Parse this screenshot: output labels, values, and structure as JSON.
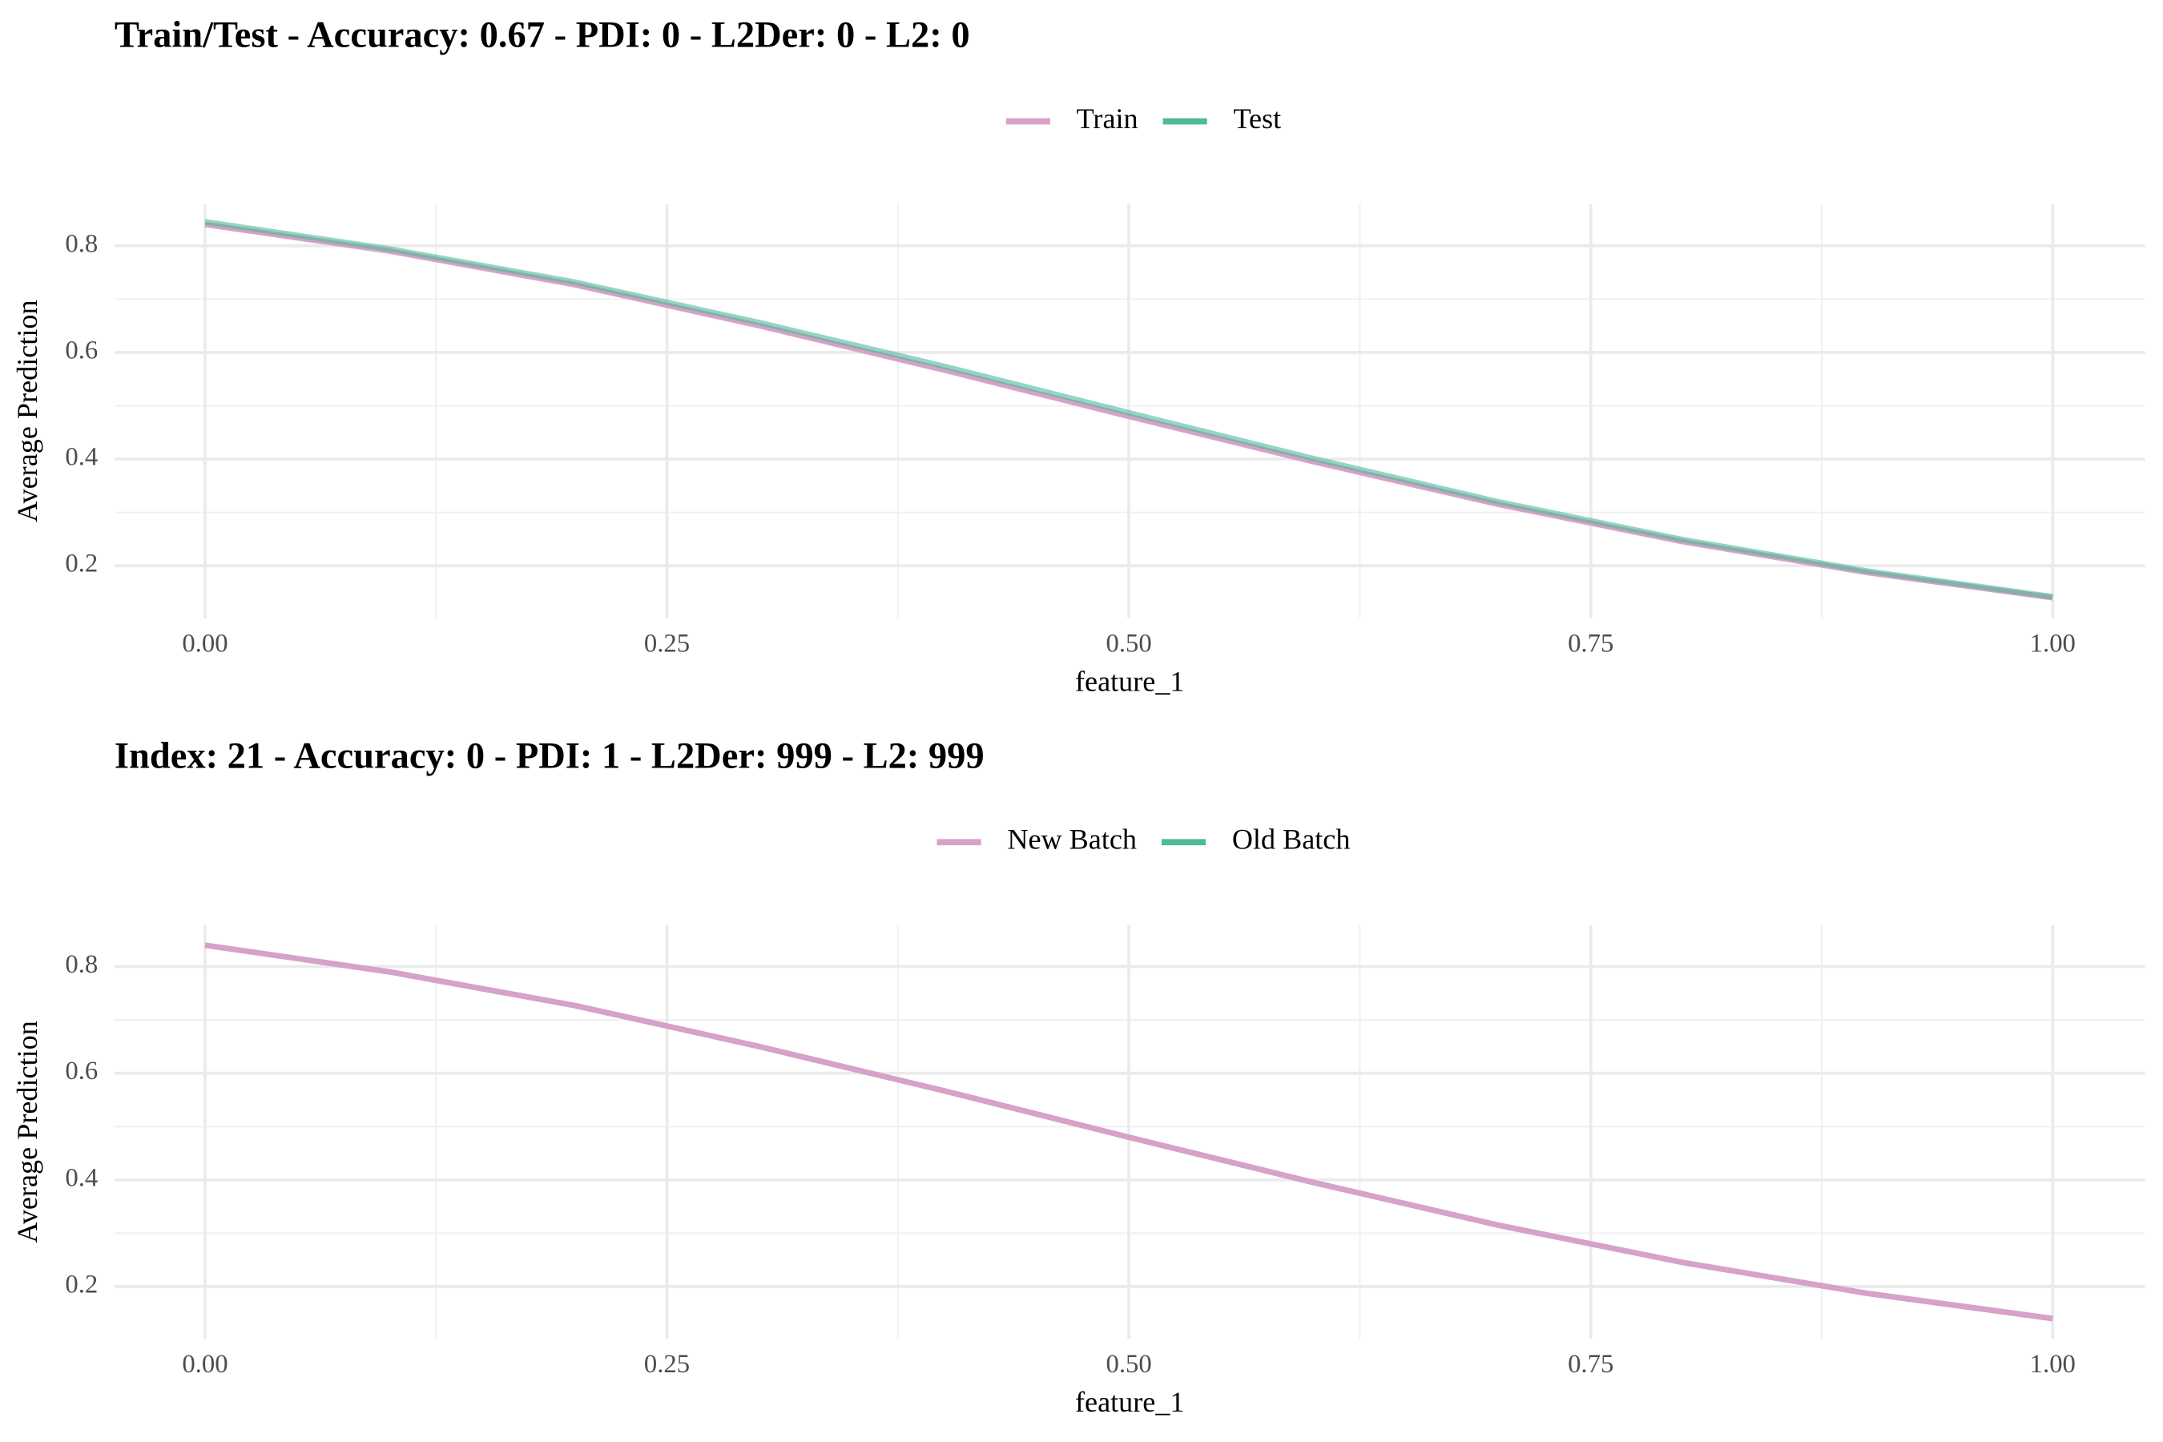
{
  "chart_data": [
    {
      "type": "line",
      "title": "Train/Test - Accuracy: 0.67 - PDI: 0 - L2Der: 0 - L2: 0",
      "x_label": "feature_1",
      "y_label": "Average Prediction",
      "x": [
        0,
        0.1,
        0.2,
        0.3,
        0.4,
        0.5,
        0.6,
        0.7,
        0.8,
        0.9,
        1.0
      ],
      "series": [
        {
          "name": "Train",
          "color": "#d7a1c9",
          "values": [
            0.84,
            0.79,
            0.727,
            0.65,
            0.567,
            0.48,
            0.395,
            0.315,
            0.245,
            0.187,
            0.14
          ]
        },
        {
          "name": "Test",
          "color": "#4fb99a",
          "values": [
            0.845,
            0.794,
            0.732,
            0.656,
            0.574,
            0.487,
            0.401,
            0.32,
            0.249,
            0.19,
            0.142
          ]
        }
      ],
      "xlim": [
        -0.049,
        1.05
      ],
      "ylim": [
        0.102,
        0.878
      ],
      "xticks": [
        {
          "value": 0,
          "label": "0.00"
        },
        0.25,
        {
          "value": 0.5,
          "label": "0.50"
        },
        0.75,
        {
          "value": 1,
          "label": "1.00"
        }
      ],
      "yticks": [
        0.2,
        0.4,
        0.6,
        0.8
      ],
      "grid": true,
      "legend": "top"
    },
    {
      "type": "line",
      "title": "Index: 21 - Accuracy: 0 - PDI: 1 - L2Der: 999 - L2: 999",
      "x_label": "feature_1",
      "y_label": "Average Prediction",
      "x": [
        0,
        0.1,
        0.2,
        0.3,
        0.4,
        0.5,
        0.6,
        0.7,
        0.8,
        0.9,
        1.0
      ],
      "series": [
        {
          "name": "New Batch",
          "color": "#d7a1c9",
          "values": [
            0.84,
            0.79,
            0.727,
            0.65,
            0.567,
            0.48,
            0.395,
            0.315,
            0.245,
            0.187,
            0.14
          ]
        },
        {
          "name": "Old Batch",
          "color": "#4fb99a",
          "values": [
            0.84,
            0.79,
            0.727,
            0.65,
            0.567,
            0.48,
            0.395,
            0.315,
            0.245,
            0.187,
            0.14
          ]
        }
      ],
      "xlim": [
        -0.049,
        1.05
      ],
      "ylim": [
        0.102,
        0.878
      ],
      "xticks": [
        {
          "value": 0,
          "label": "0.00"
        },
        0.25,
        {
          "value": 0.5,
          "label": "0.50"
        },
        0.75,
        {
          "value": 1,
          "label": "1.00"
        }
      ],
      "yticks": [
        0.2,
        0.4,
        0.6,
        0.8
      ],
      "grid": true,
      "legend": "top"
    }
  ]
}
